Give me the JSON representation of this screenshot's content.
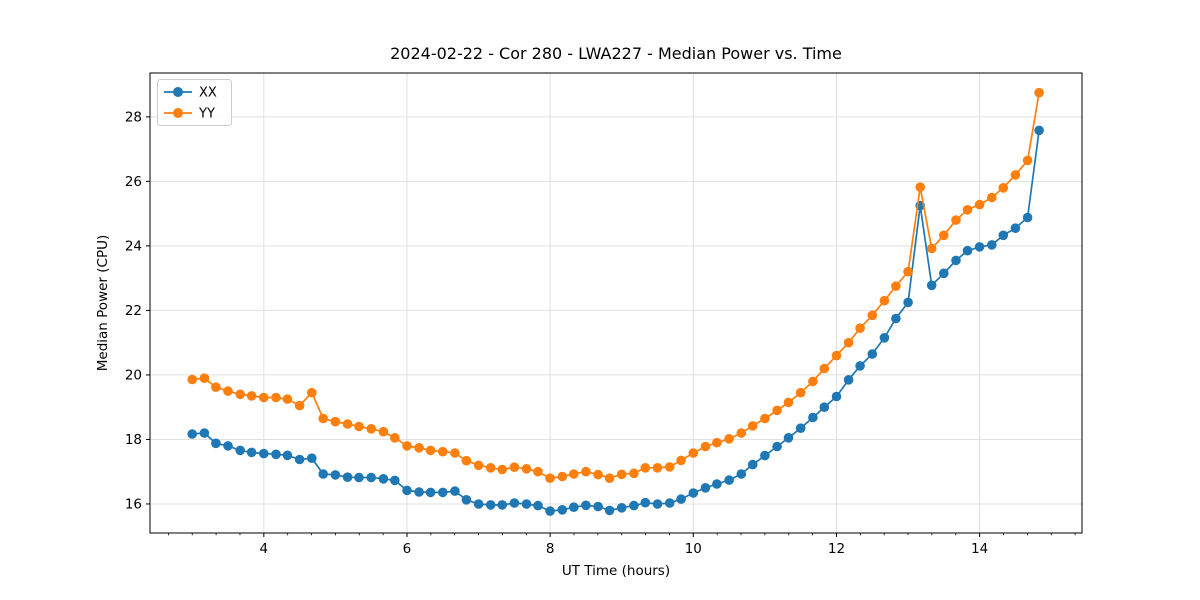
{
  "chart_data": {
    "type": "line",
    "title": "2024-02-22 - Cor 280 - LWA227 - Median Power vs. Time",
    "xlabel": "UT Time (hours)",
    "ylabel": "Median Power (CPU)",
    "xlim": [
      2.41,
      15.43
    ],
    "ylim": [
      15.1,
      29.36
    ],
    "x_ticks": [
      4,
      6,
      8,
      10,
      12,
      14
    ],
    "y_ticks": [
      16,
      18,
      20,
      22,
      24,
      26,
      28
    ],
    "x_minor_tick_step": 0.3333,
    "grid": true,
    "grid_color": "#e0e0e0",
    "legend_position": "upper-left",
    "marker": "circle",
    "x": [
      3.0,
      3.17,
      3.33,
      3.5,
      3.67,
      3.83,
      4.0,
      4.17,
      4.33,
      4.5,
      4.67,
      4.83,
      5.0,
      5.17,
      5.33,
      5.5,
      5.67,
      5.83,
      6.0,
      6.17,
      6.33,
      6.5,
      6.67,
      6.83,
      7.0,
      7.17,
      7.33,
      7.5,
      7.67,
      7.83,
      8.0,
      8.17,
      8.33,
      8.5,
      8.67,
      8.83,
      9.0,
      9.17,
      9.33,
      9.5,
      9.67,
      9.83,
      10.0,
      10.17,
      10.33,
      10.5,
      10.67,
      10.83,
      11.0,
      11.17,
      11.33,
      11.5,
      11.67,
      11.83,
      12.0,
      12.17,
      12.33,
      12.5,
      12.67,
      12.83,
      13.0,
      13.17,
      13.33,
      13.5,
      13.67,
      13.83,
      14.0,
      14.17,
      14.33,
      14.5,
      14.67,
      14.83
    ],
    "series": [
      {
        "name": "XX",
        "color": "#1f77b4",
        "values": [
          18.17,
          18.2,
          17.88,
          17.8,
          17.66,
          17.6,
          17.56,
          17.54,
          17.51,
          17.38,
          17.42,
          16.93,
          16.9,
          16.83,
          16.82,
          16.82,
          16.78,
          16.73,
          16.42,
          16.37,
          16.36,
          16.36,
          16.4,
          16.13,
          16.0,
          15.97,
          15.97,
          16.03,
          16.0,
          15.95,
          15.78,
          15.82,
          15.9,
          15.96,
          15.92,
          15.8,
          15.88,
          15.95,
          16.04,
          16.0,
          16.03,
          16.15,
          16.34,
          16.5,
          16.62,
          16.74,
          16.93,
          17.22,
          17.5,
          17.78,
          18.05,
          18.35,
          18.68,
          19.0,
          19.33,
          19.85,
          20.28,
          20.65,
          21.15,
          21.75,
          22.25,
          25.25,
          22.78,
          23.15,
          23.55,
          23.85,
          23.97,
          24.03,
          24.33,
          24.55,
          24.88,
          27.58
        ]
      },
      {
        "name": "YY",
        "color": "#ff7f0e",
        "values": [
          19.86,
          19.9,
          19.62,
          19.5,
          19.4,
          19.35,
          19.3,
          19.3,
          19.25,
          19.05,
          19.45,
          18.65,
          18.55,
          18.48,
          18.4,
          18.33,
          18.24,
          18.05,
          17.8,
          17.74,
          17.66,
          17.62,
          17.58,
          17.34,
          17.2,
          17.12,
          17.07,
          17.14,
          17.09,
          17.0,
          16.8,
          16.85,
          16.93,
          17.0,
          16.91,
          16.8,
          16.92,
          16.95,
          17.12,
          17.12,
          17.15,
          17.35,
          17.58,
          17.78,
          17.9,
          18.02,
          18.2,
          18.42,
          18.65,
          18.9,
          19.15,
          19.45,
          19.8,
          20.2,
          20.6,
          21.0,
          21.45,
          21.85,
          22.3,
          22.75,
          23.2,
          25.82,
          23.92,
          24.33,
          24.8,
          25.12,
          25.28,
          25.5,
          25.8,
          26.2,
          26.65,
          28.75
        ]
      }
    ]
  }
}
